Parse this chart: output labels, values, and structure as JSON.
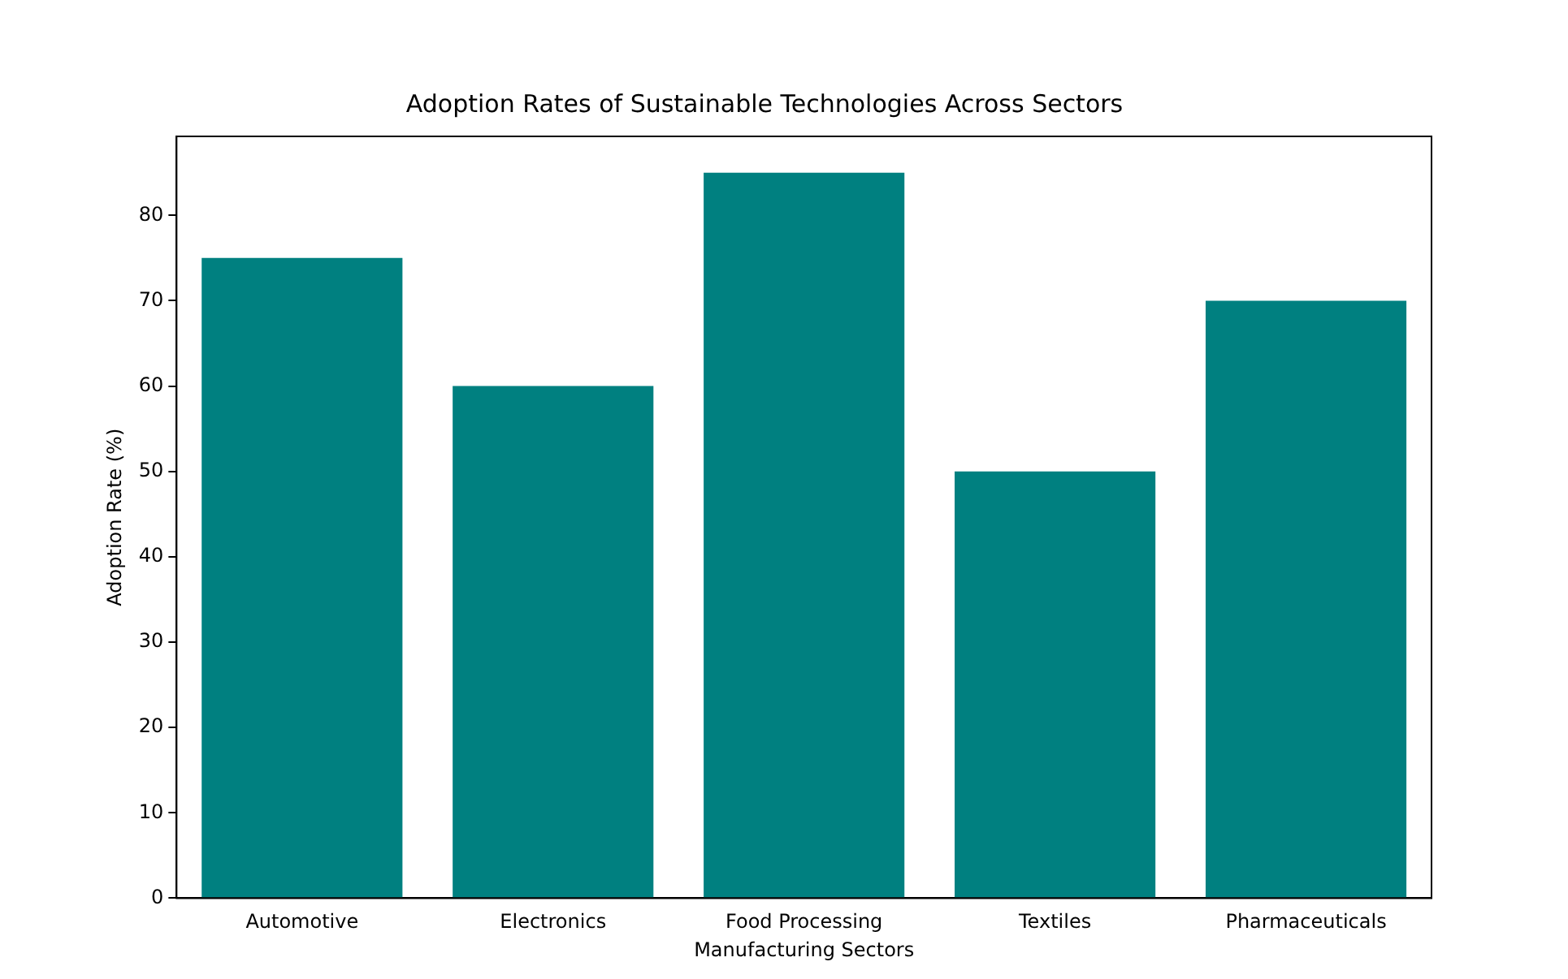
{
  "chart_data": {
    "type": "bar",
    "title": "Adoption Rates of Sustainable Technologies Across Sectors",
    "xlabel": "Manufacturing Sectors",
    "ylabel": "Adoption Rate (%)",
    "categories": [
      "Automotive",
      "Electronics",
      "Food Processing",
      "Textiles",
      "Pharmaceuticals"
    ],
    "values": [
      75,
      60,
      85,
      50,
      70
    ],
    "color": "#008080",
    "ylim": [
      0,
      89.25
    ],
    "yticks": [
      0,
      10,
      20,
      30,
      40,
      50,
      60,
      70,
      80
    ],
    "grid": false,
    "legend": false
  }
}
